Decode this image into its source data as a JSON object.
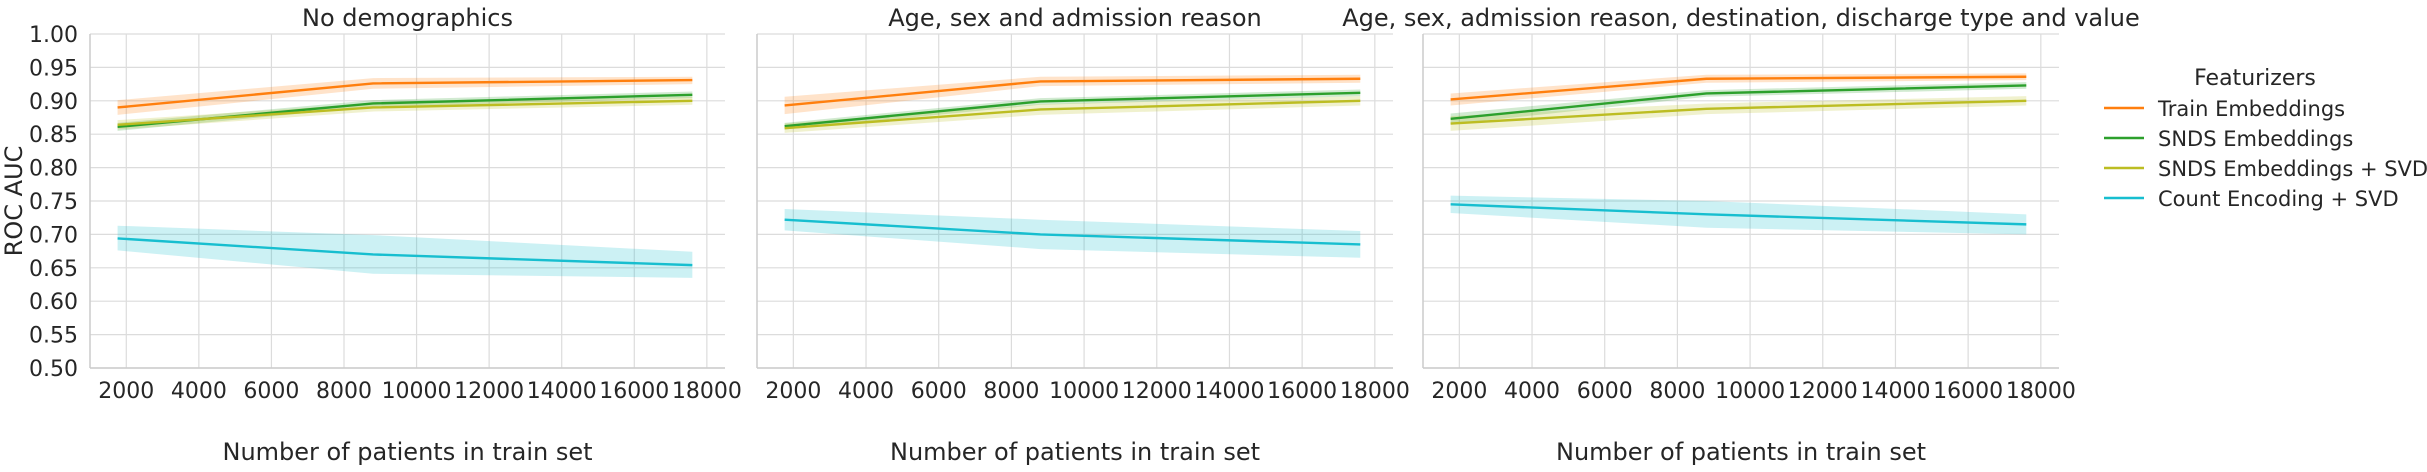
{
  "chart_data": {
    "type": "line",
    "legend": {
      "title": "Featurizers",
      "placement": "right",
      "entries": [
        "Train Embeddings",
        "SNDS Embeddings",
        "SNDS Embeddings + SVD",
        "Count Encoding + SVD"
      ]
    },
    "colors": [
      "#ff7f0e",
      "#2ca02c",
      "#bcbd22",
      "#17becf"
    ],
    "grid": true,
    "ylabel": "ROC AUC",
    "xlabel": "Number of patients in train set",
    "ylim": [
      0.5,
      1.0
    ],
    "xlim": [
      1000,
      18500
    ],
    "yticks": [
      "0.50",
      "0.55",
      "0.60",
      "0.65",
      "0.70",
      "0.75",
      "0.80",
      "0.85",
      "0.90",
      "0.95",
      "1.00"
    ],
    "xticks": [
      "2000",
      "4000",
      "6000",
      "8000",
      "10000",
      "12000",
      "14000",
      "16000",
      "18000"
    ],
    "panels": [
      {
        "title": "No demographics",
        "x": [
          1760,
          8800,
          17600
        ],
        "series": [
          {
            "name": "Train Embeddings",
            "values": [
              0.89,
              0.926,
              0.931
            ],
            "lower": [
              0.879,
              0.918,
              0.925
            ],
            "upper": [
              0.901,
              0.934,
              0.936
            ]
          },
          {
            "name": "SNDS Embeddings",
            "values": [
              0.861,
              0.896,
              0.909
            ],
            "lower": [
              0.855,
              0.891,
              0.904
            ],
            "upper": [
              0.867,
              0.901,
              0.914
            ]
          },
          {
            "name": "SNDS Embeddings + SVD",
            "values": [
              0.864,
              0.89,
              0.9
            ],
            "lower": [
              0.857,
              0.884,
              0.894
            ],
            "upper": [
              0.871,
              0.896,
              0.906
            ]
          },
          {
            "name": "Count Encoding + SVD",
            "values": [
              0.694,
              0.67,
              0.654
            ],
            "lower": [
              0.676,
              0.641,
              0.635
            ],
            "upper": [
              0.713,
              0.699,
              0.674
            ]
          }
        ]
      },
      {
        "title": "Age, sex and admission reason",
        "x": [
          1760,
          8800,
          17600
        ],
        "series": [
          {
            "name": "Train Embeddings",
            "values": [
              0.893,
              0.929,
              0.933
            ],
            "lower": [
              0.88,
              0.922,
              0.927
            ],
            "upper": [
              0.906,
              0.936,
              0.939
            ]
          },
          {
            "name": "SNDS Embeddings",
            "values": [
              0.862,
              0.899,
              0.912
            ],
            "lower": [
              0.857,
              0.894,
              0.907
            ],
            "upper": [
              0.867,
              0.904,
              0.917
            ]
          },
          {
            "name": "SNDS Embeddings + SVD",
            "values": [
              0.859,
              0.887,
              0.9
            ],
            "lower": [
              0.852,
              0.879,
              0.893
            ],
            "upper": [
              0.866,
              0.895,
              0.907
            ]
          },
          {
            "name": "Count Encoding + SVD",
            "values": [
              0.722,
              0.7,
              0.685
            ],
            "lower": [
              0.706,
              0.678,
              0.665
            ],
            "upper": [
              0.738,
              0.722,
              0.705
            ]
          }
        ]
      },
      {
        "title": "Age, sex, admission reason, destination, discharge type and value",
        "x": [
          1760,
          8800,
          17600
        ],
        "series": [
          {
            "name": "Train Embeddings",
            "values": [
              0.902,
              0.933,
              0.936
            ],
            "lower": [
              0.893,
              0.927,
              0.931
            ],
            "upper": [
              0.911,
              0.939,
              0.941
            ]
          },
          {
            "name": "SNDS Embeddings",
            "values": [
              0.873,
              0.911,
              0.923
            ],
            "lower": [
              0.865,
              0.906,
              0.918
            ],
            "upper": [
              0.881,
              0.916,
              0.928
            ]
          },
          {
            "name": "SNDS Embeddings + SVD",
            "values": [
              0.866,
              0.888,
              0.9
            ],
            "lower": [
              0.855,
              0.88,
              0.893
            ],
            "upper": [
              0.877,
              0.896,
              0.907
            ]
          },
          {
            "name": "Count Encoding + SVD",
            "values": [
              0.745,
              0.73,
              0.715
            ],
            "lower": [
              0.732,
              0.71,
              0.7
            ],
            "upper": [
              0.758,
              0.75,
              0.73
            ]
          }
        ]
      }
    ]
  }
}
